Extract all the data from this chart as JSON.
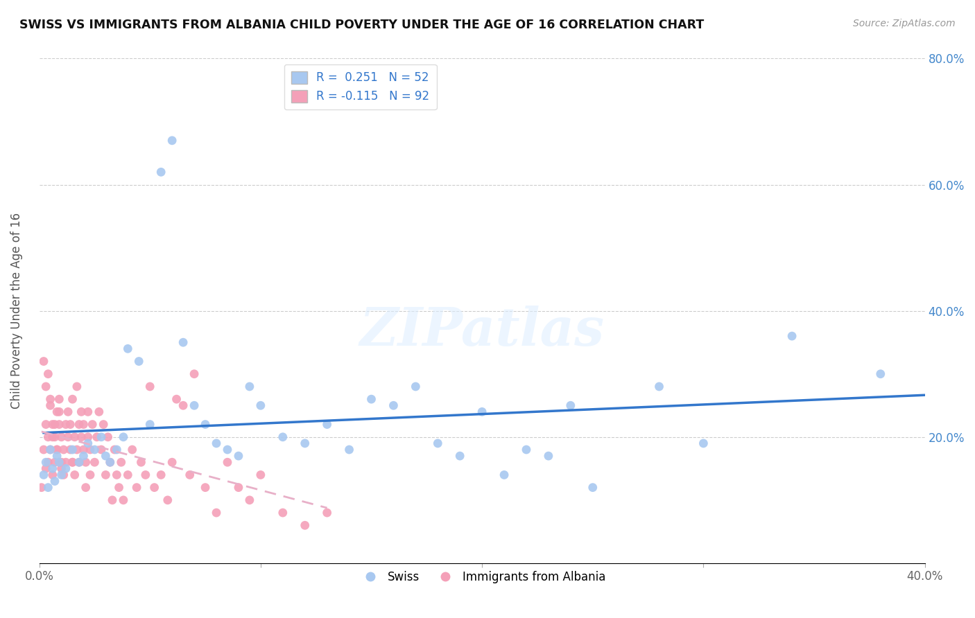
{
  "title": "SWISS VS IMMIGRANTS FROM ALBANIA CHILD POVERTY UNDER THE AGE OF 16 CORRELATION CHART",
  "source": "Source: ZipAtlas.com",
  "ylabel": "Child Poverty Under the Age of 16",
  "xlim": [
    0.0,
    0.4
  ],
  "ylim": [
    0.0,
    0.8
  ],
  "swiss_color": "#a8c8f0",
  "albania_color": "#f4a0b8",
  "swiss_line_color": "#3377cc",
  "albania_line_color": "#e8b0c8",
  "R_swiss": 0.251,
  "N_swiss": 52,
  "R_albania": -0.115,
  "N_albania": 92,
  "watermark": "ZIPatlas",
  "swiss_x": [
    0.002,
    0.003,
    0.004,
    0.005,
    0.006,
    0.007,
    0.008,
    0.009,
    0.01,
    0.012,
    0.015,
    0.018,
    0.02,
    0.022,
    0.025,
    0.028,
    0.03,
    0.032,
    0.035,
    0.038,
    0.04,
    0.045,
    0.05,
    0.055,
    0.06,
    0.065,
    0.07,
    0.075,
    0.08,
    0.085,
    0.09,
    0.095,
    0.1,
    0.11,
    0.12,
    0.13,
    0.14,
    0.15,
    0.16,
    0.17,
    0.18,
    0.19,
    0.2,
    0.21,
    0.22,
    0.23,
    0.24,
    0.25,
    0.28,
    0.3,
    0.34,
    0.38
  ],
  "swiss_y": [
    0.14,
    0.16,
    0.12,
    0.18,
    0.15,
    0.13,
    0.17,
    0.16,
    0.14,
    0.15,
    0.18,
    0.16,
    0.17,
    0.19,
    0.18,
    0.2,
    0.17,
    0.16,
    0.18,
    0.2,
    0.34,
    0.32,
    0.22,
    0.62,
    0.67,
    0.35,
    0.25,
    0.22,
    0.19,
    0.18,
    0.17,
    0.28,
    0.25,
    0.2,
    0.19,
    0.22,
    0.18,
    0.26,
    0.25,
    0.28,
    0.19,
    0.17,
    0.24,
    0.14,
    0.18,
    0.17,
    0.25,
    0.12,
    0.28,
    0.19,
    0.36,
    0.3
  ],
  "albania_x": [
    0.001,
    0.002,
    0.003,
    0.003,
    0.004,
    0.004,
    0.005,
    0.005,
    0.006,
    0.006,
    0.007,
    0.007,
    0.008,
    0.008,
    0.009,
    0.009,
    0.01,
    0.01,
    0.011,
    0.011,
    0.012,
    0.012,
    0.013,
    0.013,
    0.014,
    0.014,
    0.015,
    0.015,
    0.016,
    0.016,
    0.017,
    0.017,
    0.018,
    0.018,
    0.019,
    0.019,
    0.02,
    0.02,
    0.021,
    0.021,
    0.022,
    0.022,
    0.023,
    0.023,
    0.024,
    0.025,
    0.026,
    0.027,
    0.028,
    0.029,
    0.03,
    0.031,
    0.032,
    0.033,
    0.034,
    0.035,
    0.036,
    0.037,
    0.038,
    0.04,
    0.042,
    0.044,
    0.046,
    0.048,
    0.05,
    0.052,
    0.055,
    0.058,
    0.06,
    0.062,
    0.065,
    0.068,
    0.07,
    0.075,
    0.08,
    0.085,
    0.09,
    0.095,
    0.1,
    0.11,
    0.12,
    0.13,
    0.002,
    0.003,
    0.004,
    0.005,
    0.006,
    0.007,
    0.008,
    0.009,
    0.01,
    0.015
  ],
  "albania_y": [
    0.12,
    0.18,
    0.22,
    0.15,
    0.2,
    0.16,
    0.25,
    0.18,
    0.22,
    0.14,
    0.2,
    0.16,
    0.24,
    0.18,
    0.22,
    0.26,
    0.16,
    0.2,
    0.14,
    0.18,
    0.22,
    0.16,
    0.2,
    0.24,
    0.18,
    0.22,
    0.16,
    0.26,
    0.2,
    0.14,
    0.28,
    0.18,
    0.22,
    0.16,
    0.2,
    0.24,
    0.18,
    0.22,
    0.16,
    0.12,
    0.2,
    0.24,
    0.18,
    0.14,
    0.22,
    0.16,
    0.2,
    0.24,
    0.18,
    0.22,
    0.14,
    0.2,
    0.16,
    0.1,
    0.18,
    0.14,
    0.12,
    0.16,
    0.1,
    0.14,
    0.18,
    0.12,
    0.16,
    0.14,
    0.28,
    0.12,
    0.14,
    0.1,
    0.16,
    0.26,
    0.25,
    0.14,
    0.3,
    0.12,
    0.08,
    0.16,
    0.12,
    0.1,
    0.14,
    0.08,
    0.06,
    0.08,
    0.32,
    0.28,
    0.3,
    0.26,
    0.2,
    0.22,
    0.18,
    0.24,
    0.15,
    0.16
  ]
}
